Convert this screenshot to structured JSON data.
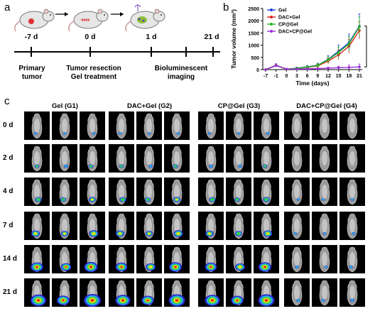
{
  "panels": {
    "a": "a",
    "b": "b",
    "c": "c"
  },
  "timeline": {
    "points": [
      "-7 d",
      "0 d",
      "1 d",
      "21 d"
    ],
    "events": [
      {
        "lines": [
          "Primary",
          "tumor"
        ]
      },
      {
        "lines": [
          "Tumor resection",
          "Gel treatment"
        ]
      },
      {
        "lines": [
          "Bioluminescent",
          "imaging"
        ]
      }
    ]
  },
  "chart_data": {
    "type": "line",
    "xlabel": "Time (days)",
    "ylabel": "Tumor volume (mm³)",
    "x": [
      "-7",
      "-1",
      "0",
      "3",
      "6",
      "9",
      "12",
      "15",
      "18",
      "21"
    ],
    "ylim": [
      0,
      2500
    ],
    "yticks": [
      "0",
      "500",
      "1000",
      "1500",
      "2000",
      "2500"
    ],
    "significance": "***",
    "legend_position": "top-left",
    "series": [
      {
        "name": "Gel",
        "color": "#1f3fd6",
        "values": [
          0,
          180,
          20,
          60,
          110,
          180,
          420,
          750,
          1100,
          1780
        ],
        "errors": [
          20,
          60,
          20,
          40,
          60,
          80,
          150,
          250,
          350,
          500
        ]
      },
      {
        "name": "DAC+Gel",
        "color": "#e02020",
        "values": [
          0,
          170,
          20,
          50,
          90,
          150,
          350,
          600,
          950,
          1600
        ],
        "errors": [
          20,
          50,
          20,
          30,
          50,
          70,
          120,
          200,
          280,
          350
        ]
      },
      {
        "name": "CP@Gel",
        "color": "#22b822",
        "values": [
          0,
          160,
          20,
          50,
          100,
          170,
          400,
          700,
          1050,
          1750
        ],
        "errors": [
          20,
          50,
          20,
          30,
          50,
          70,
          130,
          220,
          300,
          400
        ]
      },
      {
        "name": "DAC+CP@Gel",
        "color": "#9b30d6",
        "values": [
          0,
          160,
          20,
          20,
          30,
          40,
          60,
          80,
          90,
          110
        ],
        "errors": [
          20,
          40,
          20,
          20,
          20,
          30,
          40,
          60,
          90,
          120
        ]
      }
    ]
  },
  "imaging": {
    "groups": [
      "Gel (G1)",
      "DAC+Gel (G2)",
      "CP@Gel (G3)",
      "DAC+CP@Gel (G4)"
    ],
    "days": [
      "0 d",
      "2 d",
      "4 d",
      "7 d",
      "14 d",
      "21 d"
    ],
    "signal_levels": [
      [
        0.05,
        0.15,
        0.3,
        0.45,
        0.75,
        1.0
      ],
      [
        0.05,
        0.15,
        0.3,
        0.45,
        0.7,
        0.95
      ],
      [
        0.05,
        0.12,
        0.28,
        0.42,
        0.7,
        0.95
      ],
      [
        0.02,
        0.03,
        0.05,
        0.06,
        0.08,
        0.1
      ]
    ]
  }
}
